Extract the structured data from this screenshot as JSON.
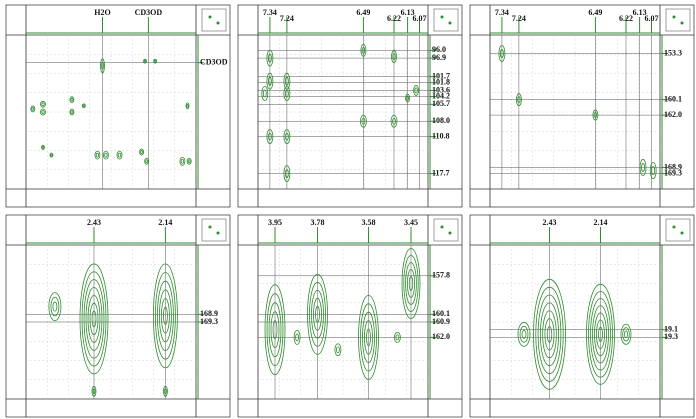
{
  "panels": [
    {
      "top_labels": [
        "H2O",
        "CD3OD"
      ],
      "right_labels": [
        "CD3OD"
      ]
    },
    {
      "top_labels": [
        "7.34",
        "7.24",
        "6.49",
        "6.22",
        "6.13",
        "6.07"
      ],
      "right_labels": [
        "96.0",
        "96.9",
        "101.7",
        "101.8",
        "103.6",
        "104.2",
        "105.7",
        "108.0",
        "110.8",
        "117.7"
      ]
    },
    {
      "top_labels": [
        "7.34",
        "7.24",
        "6.49",
        "6.22",
        "6.13",
        "6.07"
      ],
      "right_labels": [
        "153.3",
        "160.1",
        "162.0",
        "168.9",
        "169.3"
      ]
    },
    {
      "top_labels": [
        "2.43",
        "2.14"
      ],
      "right_labels": [
        "168.9",
        "169.3"
      ]
    },
    {
      "top_labels": [
        "3.95",
        "3.78",
        "3.58",
        "3.45"
      ],
      "right_labels": [
        "157.8",
        "160.1",
        "160.9",
        "162.0"
      ]
    },
    {
      "top_labels": [
        "2.43",
        "2.14"
      ],
      "right_labels": [
        "19.1",
        "19.3"
      ]
    }
  ]
}
